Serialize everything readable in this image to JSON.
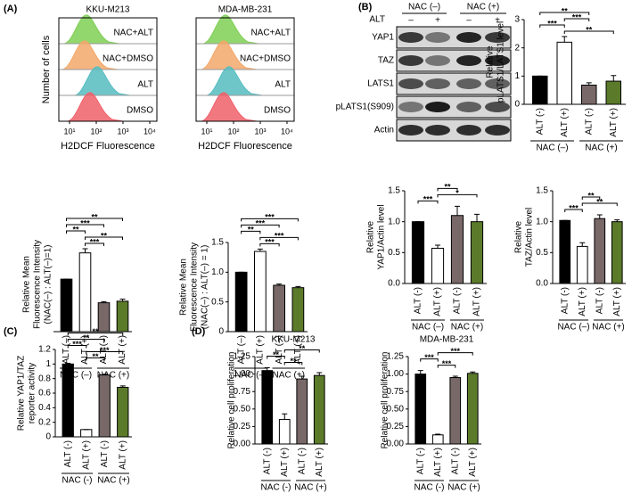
{
  "panel_labels": [
    "(A)",
    "(B)",
    "(C)",
    "(D)"
  ],
  "flow": {
    "y_label": "Number of cells",
    "x_label": "H2DCF Fluorescence",
    "x_tick_labels": [
      "10¹",
      "10²",
      "10³",
      "10⁴"
    ],
    "plots": [
      {
        "title": "KKU-M213"
      },
      {
        "title": "MDA-MB-231"
      }
    ],
    "rows": [
      {
        "label": "NAC+ALT",
        "color": "#7fcf55"
      },
      {
        "label": "NAC+DMSO",
        "color": "#f3a86a"
      },
      {
        "label": "ALT",
        "color": "#56bcc0"
      },
      {
        "label": "DMSO",
        "color": "#f0606a"
      }
    ]
  },
  "blot": {
    "treatment_label": "ALT",
    "groups": [
      "NAC (–)",
      "NAC (+)"
    ],
    "lanes": [
      "–",
      "+",
      "–",
      "+"
    ],
    "proteins": [
      "YAP1",
      "TAZ",
      "LATS1",
      "pLATS1(S909)",
      "Actin"
    ]
  },
  "chart_data": [
    {
      "type": "bar",
      "y_label": [
        "Relative Mean",
        "Fluorescence Intensity",
        "(NAC(–) : ALT(–)=1)"
      ],
      "categories": [
        "ALT (–)",
        "ALT (+)",
        "ALT (–)",
        "ALT (+)"
      ],
      "groups": [
        "NAC (–)",
        "NAC (+)"
      ],
      "values": [
        1.0,
        1.5,
        0.55,
        0.58
      ],
      "errors": [
        0,
        0.08,
        0.02,
        0.04
      ],
      "colors": [
        "#000000",
        "#ffffff",
        "#786868",
        "#5b7a2a"
      ],
      "ylim": [
        0,
        1.8
      ],
      "significance": [
        {
          "from": 1,
          "to": 2,
          "label": "***"
        },
        {
          "from": 1,
          "to": 3,
          "label": "**"
        },
        {
          "from": 0,
          "to": 1,
          "label": "**"
        },
        {
          "from": 0,
          "to": 2,
          "label": "***"
        },
        {
          "from": 0,
          "to": 3,
          "label": "**"
        }
      ]
    },
    {
      "type": "bar",
      "y_label": [
        "Relative Mean",
        "Fluorescence Intensity",
        "(NAC(–) : ALT(–) = 1)"
      ],
      "categories": [
        "ALT (–)",
        "ALT (+)",
        "ALT (–)",
        "ALT (+)"
      ],
      "groups": [
        "NAC (–)",
        "NAC (+)"
      ],
      "values": [
        1.0,
        1.35,
        0.78,
        0.74
      ],
      "errors": [
        0,
        0.04,
        0.02,
        0.02
      ],
      "colors": [
        "#000000",
        "#ffffff",
        "#786868",
        "#5b7a2a"
      ],
      "ylim": [
        0,
        1.5
      ],
      "yticks": [
        0,
        0.5,
        {
          "value": 1,
          "label": "1.0"
        },
        1.5
      ],
      "significance": [
        {
          "from": 1,
          "to": 2,
          "label": "***"
        },
        {
          "from": 1,
          "to": 3,
          "label": "***"
        },
        {
          "from": 0,
          "to": 1,
          "label": "**"
        },
        {
          "from": 0,
          "to": 2,
          "label": "***"
        },
        {
          "from": 0,
          "to": 3,
          "label": "***"
        }
      ]
    },
    {
      "type": "bar",
      "y_label": [
        "Relative",
        "pLATS1/LATS1 level"
      ],
      "categories": [
        "ALT (-)",
        "ALT (+)",
        "ALT (-)",
        "ALT (+)"
      ],
      "groups": [
        "NAC (–)",
        "NAC (+)"
      ],
      "values": [
        1.0,
        2.2,
        0.68,
        0.82
      ],
      "errors": [
        0,
        0.2,
        0.08,
        0.2
      ],
      "colors": [
        "#000000",
        "#ffffff",
        "#786868",
        "#5b7a2a"
      ],
      "ylim": [
        0,
        3
      ],
      "yticks": [
        0,
        1,
        2,
        3
      ],
      "significance": [
        {
          "from": 1,
          "to": 3,
          "label": "**"
        },
        {
          "from": 0,
          "to": 1,
          "label": "***"
        },
        {
          "from": 1,
          "to": 2,
          "label": "***"
        },
        {
          "from": 0,
          "to": 2,
          "label": "**"
        }
      ]
    },
    {
      "type": "bar",
      "y_label": [
        "Relative",
        "YAP1/Actin level"
      ],
      "categories": [
        "ALT (-)",
        "ALT (+)",
        "ALT (-)",
        "ALT (+)"
      ],
      "groups": [
        "NAC (–)",
        "NAC (+)"
      ],
      "values": [
        1.0,
        0.57,
        1.1,
        1.0
      ],
      "errors": [
        0,
        0.05,
        0.15,
        0.12
      ],
      "colors": [
        "#000000",
        "#ffffff",
        "#786868",
        "#5b7a2a"
      ],
      "ylim": [
        0,
        1.5
      ],
      "yticks": [
        {
          "value": 0,
          "label": "0.0"
        },
        0.5,
        {
          "value": 1,
          "label": "1.0"
        },
        1.5
      ],
      "significance": [
        {
          "from": 0,
          "to": 1,
          "label": "***"
        },
        {
          "from": 1,
          "to": 3,
          "label": "*"
        },
        {
          "from": 1,
          "to": 2,
          "label": "**"
        }
      ]
    },
    {
      "type": "bar",
      "y_label": [
        "Relative",
        "TAZ/Actin level"
      ],
      "categories": [
        "ALT (-)",
        "ALT (+)",
        "ALT (-)",
        "ALT (+)"
      ],
      "groups": [
        "NAC (–)",
        "NAC (+)"
      ],
      "values": [
        1.02,
        0.6,
        1.05,
        1.0
      ],
      "errors": [
        0,
        0.06,
        0.06,
        0.03
      ],
      "colors": [
        "#000000",
        "#ffffff",
        "#786868",
        "#5b7a2a"
      ],
      "ylim": [
        0,
        1.5
      ],
      "yticks": [
        {
          "value": 0,
          "label": "0.0"
        },
        0.5,
        {
          "value": 1,
          "label": "1.0"
        },
        1.5
      ],
      "significance": [
        {
          "from": 0,
          "to": 1,
          "label": "***"
        },
        {
          "from": 1,
          "to": 3,
          "label": "**"
        },
        {
          "from": 1,
          "to": 2,
          "label": "**"
        }
      ]
    },
    {
      "type": "bar",
      "y_label": [
        "Relative YAP1/TAZ",
        "reporter activity"
      ],
      "categories": [
        "ALT (-)",
        "ALT (+)",
        "ALT (-)",
        "ALT (+)"
      ],
      "groups": [
        "NAC (-)",
        "NAC (+)"
      ],
      "values": [
        1.0,
        0.1,
        0.85,
        0.68
      ],
      "errors": [
        0.01,
        0,
        0.01,
        0.02
      ],
      "colors": [
        "#000000",
        "#ffffff",
        "#786868",
        "#5b7a2a"
      ],
      "ylim": [
        0,
        1.2
      ],
      "yticks": [
        0,
        0.2,
        0.4,
        0.6,
        0.8,
        1,
        1.2
      ],
      "significance": [
        {
          "from": 1,
          "to": 2,
          "label": "**"
        },
        {
          "from": 1,
          "to": 3,
          "label": "***"
        },
        {
          "from": 0,
          "to": 1,
          "label": "***"
        },
        {
          "from": 0,
          "to": 2,
          "label": "**"
        },
        {
          "from": 0,
          "to": 3,
          "label": "**"
        }
      ]
    },
    {
      "type": "bar",
      "title": "KKU-M213",
      "y_label": [
        "Relative  cell proliferation"
      ],
      "categories": [
        "ALT (-)",
        "ALT (+)",
        "ALT (-)",
        "ALT (+)"
      ],
      "groups": [
        "NAC (-)",
        "NAC (+)"
      ],
      "values": [
        1.05,
        0.35,
        0.93,
        0.98
      ],
      "errors": [
        0.04,
        0.08,
        0.04,
        0.04
      ],
      "colors": [
        "#000000",
        "#ffffff",
        "#786868",
        "#5b7a2a"
      ],
      "ylim": [
        0,
        1.25
      ],
      "yticks": [
        {
          "value": 0,
          "label": "0.00"
        },
        0.25,
        {
          "value": 0.5,
          "label": "0.50"
        },
        0.75,
        {
          "value": 1,
          "label": "1.00"
        },
        1.25
      ],
      "significance": [
        {
          "from": 1,
          "to": 2,
          "label": "**"
        },
        {
          "from": 0,
          "to": 1,
          "label": "**"
        },
        {
          "from": 1,
          "to": 3,
          "label": "**"
        }
      ]
    },
    {
      "type": "bar",
      "title": "MDA-MB-231",
      "y_label": [
        "Relative  cell proliferation"
      ],
      "categories": [
        "ALT (-)",
        "ALT (+)",
        "ALT (-)",
        "ALT (+)"
      ],
      "groups": [
        "NAC (-)",
        "NAC (+)"
      ],
      "values": [
        1.0,
        0.13,
        0.95,
        1.01
      ],
      "errors": [
        0.05,
        0.01,
        0.02,
        0.02
      ],
      "colors": [
        "#000000",
        "#ffffff",
        "#786868",
        "#5b7a2a"
      ],
      "ylim": [
        0,
        1.25
      ],
      "yticks": [
        {
          "value": 0,
          "label": "0.00"
        },
        0.25,
        {
          "value": 0.5,
          "label": "0.50"
        },
        0.75,
        {
          "value": 1,
          "label": "1.00"
        },
        1.25
      ],
      "significance": [
        {
          "from": 1,
          "to": 2,
          "label": "***"
        },
        {
          "from": 0,
          "to": 1,
          "label": "***"
        },
        {
          "from": 1,
          "to": 3,
          "label": "***"
        }
      ]
    }
  ]
}
